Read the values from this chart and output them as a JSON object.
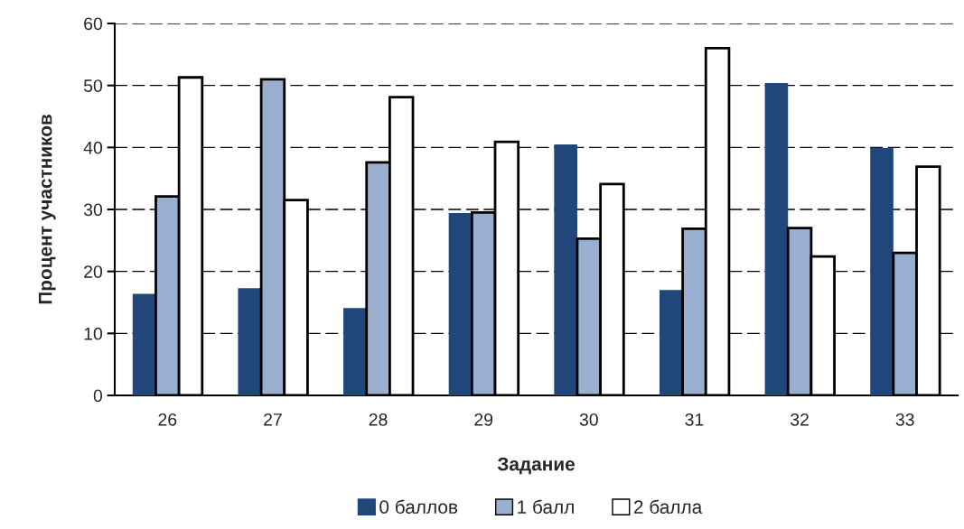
{
  "chart_data": {
    "type": "bar",
    "xlabel": "Задание",
    "ylabel": "Процент участников",
    "categories": [
      "26",
      "27",
      "28",
      "29",
      "30",
      "31",
      "32",
      "33"
    ],
    "series": [
      {
        "name": "0 баллов",
        "color": "#21477a",
        "values": [
          16.4,
          17.3,
          14.1,
          29.4,
          40.5,
          17.0,
          50.4,
          39.9
        ]
      },
      {
        "name": "1 балл",
        "color": "#9aaed0",
        "values": [
          32.1,
          51.0,
          37.6,
          29.5,
          25.3,
          26.9,
          27.0,
          23.0
        ]
      },
      {
        "name": "2 балла",
        "color": "#ffffff",
        "values": [
          51.3,
          31.5,
          48.1,
          40.9,
          34.1,
          56.0,
          22.4,
          36.9
        ]
      }
    ],
    "ylim": [
      0,
      60
    ],
    "yticks": [
      0,
      10,
      20,
      30,
      40,
      50,
      60
    ],
    "grid": "y",
    "legend": "bottom"
  }
}
